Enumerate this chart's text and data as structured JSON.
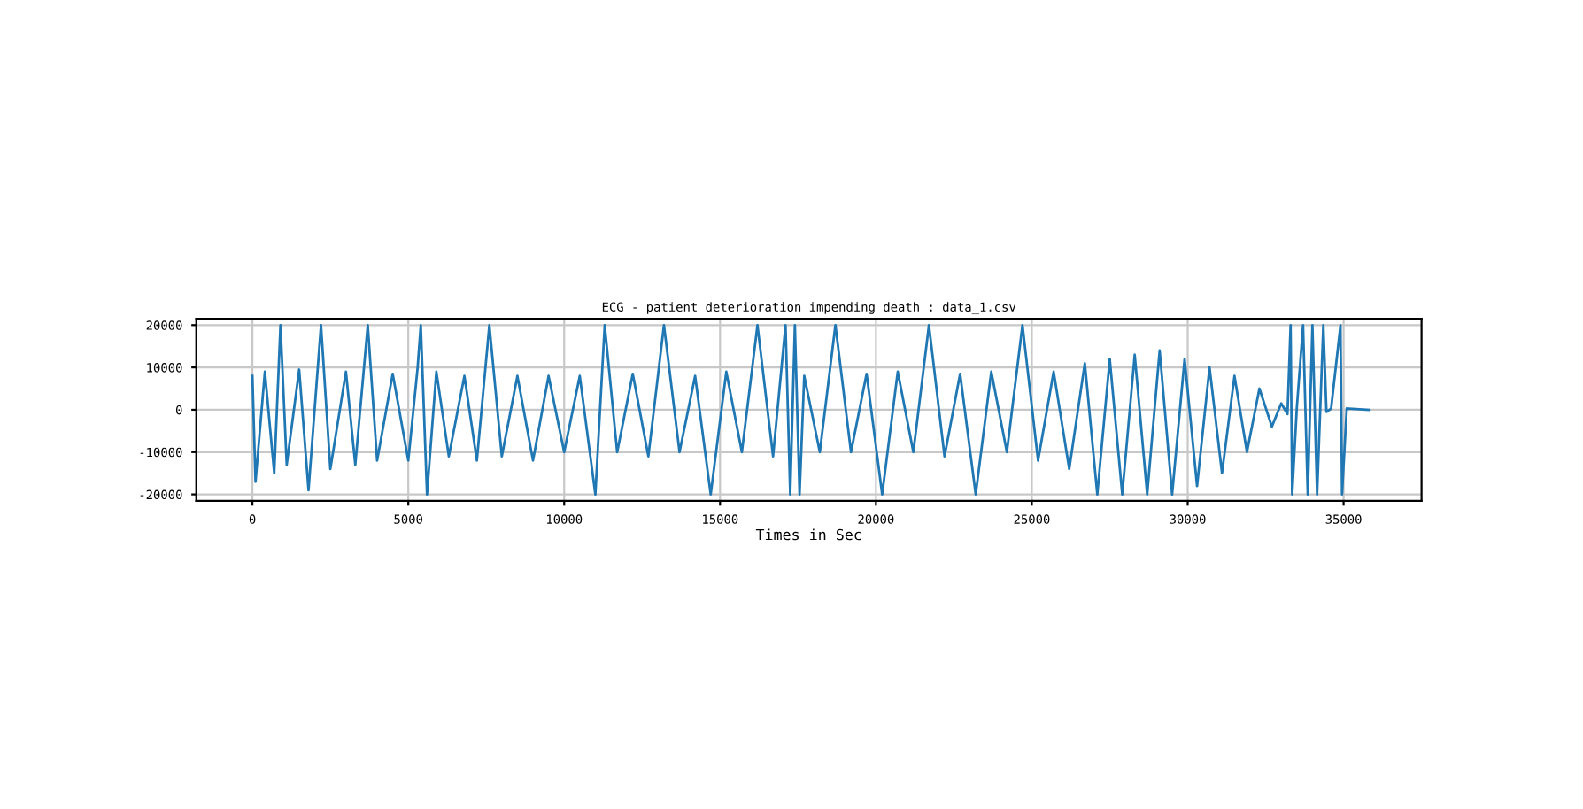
{
  "chart_data": {
    "type": "line",
    "title": "ECG - patient deterioration impending death : data_1.csv",
    "xlabel": "Times in Sec",
    "x": [
      0,
      100,
      400,
      700,
      900,
      1100,
      1500,
      1800,
      2200,
      2500,
      3000,
      3300,
      3700,
      4000,
      4500,
      5000,
      5300,
      5400,
      5600,
      5900,
      6300,
      6800,
      7200,
      7600,
      8000,
      8500,
      9000,
      9500,
      10000,
      10500,
      11000,
      11300,
      11700,
      12200,
      12700,
      13200,
      13700,
      14200,
      14700,
      15200,
      15700,
      16200,
      16700,
      17100,
      17250,
      17400,
      17550,
      17700,
      18200,
      18700,
      19200,
      19700,
      20200,
      20700,
      21200,
      21700,
      22200,
      22700,
      23200,
      23700,
      24200,
      24700,
      25200,
      25700,
      26200,
      26700,
      27100,
      27500,
      27900,
      28300,
      28700,
      29100,
      29500,
      29900,
      30300,
      30700,
      31100,
      31500,
      31900,
      32300,
      32700,
      33000,
      33200,
      33300,
      33350,
      33500,
      33700,
      33850,
      34000,
      34150,
      34350,
      34450,
      34600,
      34900,
      34950,
      35100,
      35800
    ],
    "series": [
      {
        "color": "#1f77b4",
        "values": [
          8000,
          -17000,
          9000,
          -15000,
          20000,
          -13000,
          9500,
          -19000,
          20000,
          -14000,
          9000,
          -13000,
          20000,
          -12000,
          8500,
          -12000,
          10000,
          20000,
          -20000,
          9000,
          -11000,
          8000,
          -12000,
          20000,
          -11000,
          8000,
          -12000,
          8000,
          -10000,
          8000,
          -20000,
          20000,
          -10000,
          8500,
          -11000,
          20000,
          -10000,
          8000,
          -20000,
          9000,
          -10000,
          20000,
          -11000,
          20000,
          -20000,
          20000,
          -20000,
          8000,
          -10000,
          20000,
          -10000,
          8500,
          -20000,
          9000,
          -10000,
          20000,
          -11000,
          8500,
          -20000,
          9000,
          -10000,
          20000,
          -12000,
          9000,
          -14000,
          11000,
          -20000,
          12000,
          -20000,
          13000,
          -20000,
          14000,
          -20000,
          12000,
          -18000,
          10000,
          -15000,
          8000,
          -10000,
          5000,
          -4000,
          1500,
          -1000,
          20000,
          -20000,
          500,
          20000,
          -20000,
          20000,
          -20000,
          20000,
          -500,
          300,
          20000,
          -20000,
          300,
          0
        ]
      }
    ],
    "xlim": [
      -1800,
      37500
    ],
    "ylim": [
      -21500,
      21500
    ],
    "xticks": [
      0,
      5000,
      10000,
      15000,
      20000,
      25000,
      30000,
      35000
    ],
    "yticks": [
      -20000,
      -10000,
      0,
      10000,
      20000
    ],
    "grid": true
  }
}
